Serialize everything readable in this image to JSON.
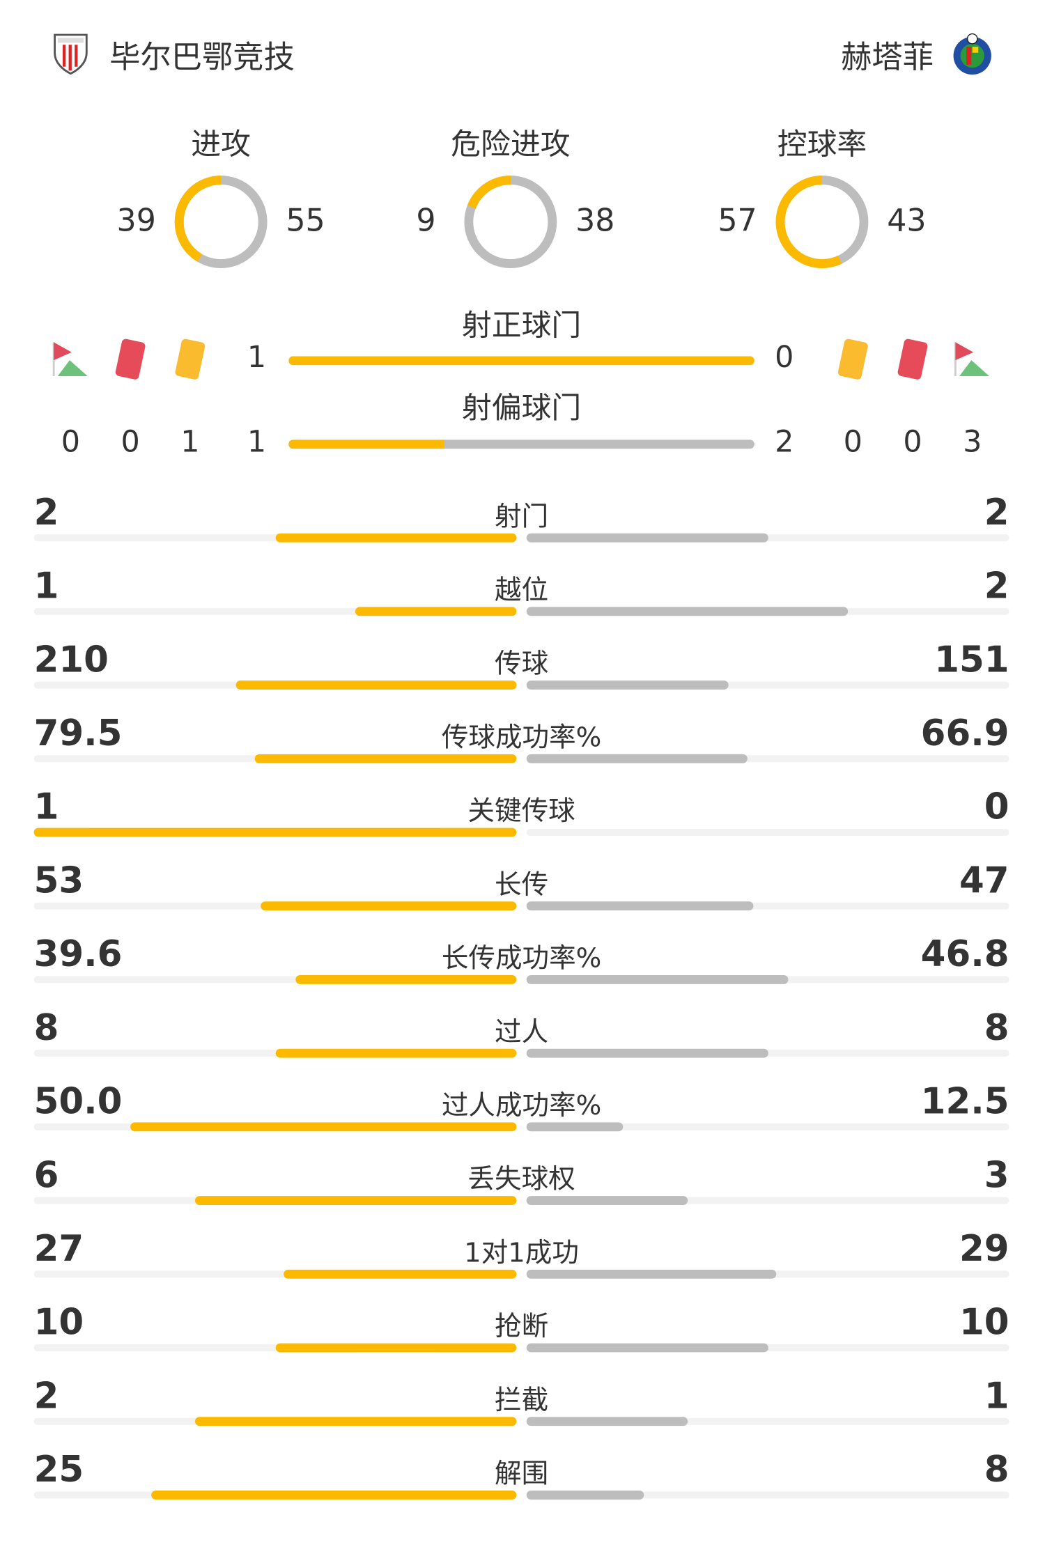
{
  "home": {
    "name": "毕尔巴鄂竞技",
    "corners": 0,
    "red_cards": 0,
    "yellow_cards": 1
  },
  "away": {
    "name": "赫塔菲",
    "corners": 3,
    "red_cards": 0,
    "yellow_cards": 0
  },
  "colors": {
    "home": "#fbba00",
    "away": "#bdbdbd",
    "track": "#f2f2f2"
  },
  "donuts": [
    {
      "title": "进攻",
      "home": 39,
      "away": 55
    },
    {
      "title": "危险进攻",
      "home": 9,
      "away": 38
    },
    {
      "title": "控球率",
      "home": 57,
      "away": 43
    }
  ],
  "shots_on_target": {
    "title": "射正球门",
    "home": 1,
    "away": 0
  },
  "shots_off_target": {
    "title": "射偏球门",
    "home": 1,
    "away": 2
  },
  "stats": [
    {
      "label": "射门",
      "home": "2",
      "away": "2"
    },
    {
      "label": "越位",
      "home": "1",
      "away": "2"
    },
    {
      "label": "传球",
      "home": "210",
      "away": "151"
    },
    {
      "label": "传球成功率%",
      "home": "79.5",
      "away": "66.9"
    },
    {
      "label": "关键传球",
      "home": "1",
      "away": "0"
    },
    {
      "label": "长传",
      "home": "53",
      "away": "47"
    },
    {
      "label": "长传成功率%",
      "home": "39.6",
      "away": "46.8"
    },
    {
      "label": "过人",
      "home": "8",
      "away": "8"
    },
    {
      "label": "过人成功率%",
      "home": "50.0",
      "away": "12.5"
    },
    {
      "label": "丢失球权",
      "home": "6",
      "away": "3"
    },
    {
      "label": "1对1成功",
      "home": "27",
      "away": "29"
    },
    {
      "label": "抢断",
      "home": "10",
      "away": "10"
    },
    {
      "label": "拦截",
      "home": "2",
      "away": "1"
    },
    {
      "label": "解围",
      "home": "25",
      "away": "8"
    }
  ]
}
